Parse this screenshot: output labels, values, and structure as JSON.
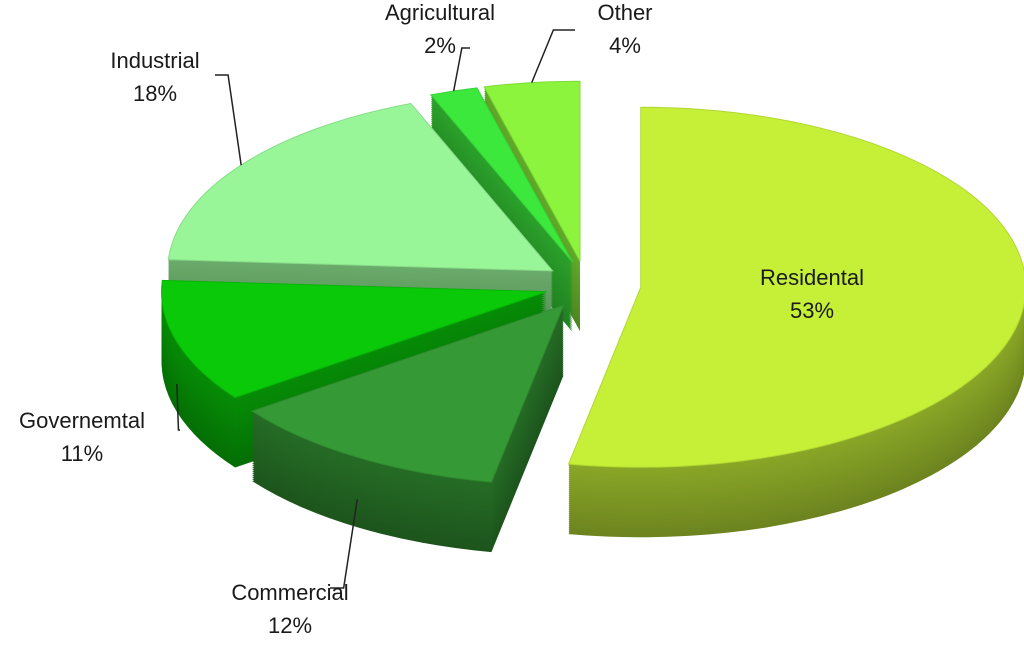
{
  "chart_data": {
    "type": "pie",
    "categories": [
      "Residental",
      "Commercial",
      "Governemtal",
      "Industrial",
      "Agricultural",
      "Other"
    ],
    "values": [
      53,
      12,
      11,
      18,
      2,
      4
    ],
    "value_labels": [
      "53%",
      "12%",
      "11%",
      "18%",
      "2%",
      "4%"
    ],
    "colors": [
      "#c6ef38",
      "#359a35",
      "#09c909",
      "#98f598",
      "#3de83d",
      "#8cf43c"
    ],
    "three_d": true,
    "exploded": true
  }
}
